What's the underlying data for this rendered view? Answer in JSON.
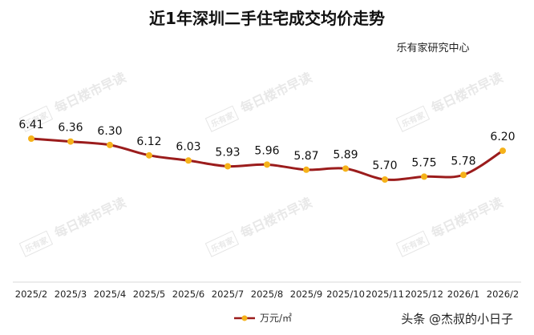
{
  "chart_data": {
    "type": "line",
    "title": "近1年深圳二手住宅成交均价走势",
    "source_note": "乐有家研究中心",
    "categories": [
      "2025/2",
      "2025/3",
      "2025/4",
      "2025/5",
      "2025/6",
      "2025/7",
      "2025/8",
      "2025/9",
      "2025/10",
      "2025/11",
      "2025/12",
      "2026/1",
      "2026/2"
    ],
    "series": [
      {
        "name": "万元/㎡",
        "values": [
          6.41,
          6.36,
          6.3,
          6.12,
          6.03,
          5.93,
          5.96,
          5.87,
          5.89,
          5.7,
          5.75,
          5.78,
          6.2
        ],
        "labels": [
          "6.41",
          "6.36",
          "6.30",
          "6.12",
          "6.03",
          "5.93",
          "5.96",
          "5.87",
          "5.89",
          "5.70",
          "5.75",
          "5.78",
          "6.20"
        ]
      }
    ],
    "legend_position": "bottom",
    "grid": false,
    "line_color": "#9b1c1c",
    "marker_color": "#f5b21a"
  },
  "watermark": {
    "text": "每日楼市早读",
    "logo": "乐有家"
  },
  "footer": {
    "credit": "头条 @杰叔的小日子"
  }
}
